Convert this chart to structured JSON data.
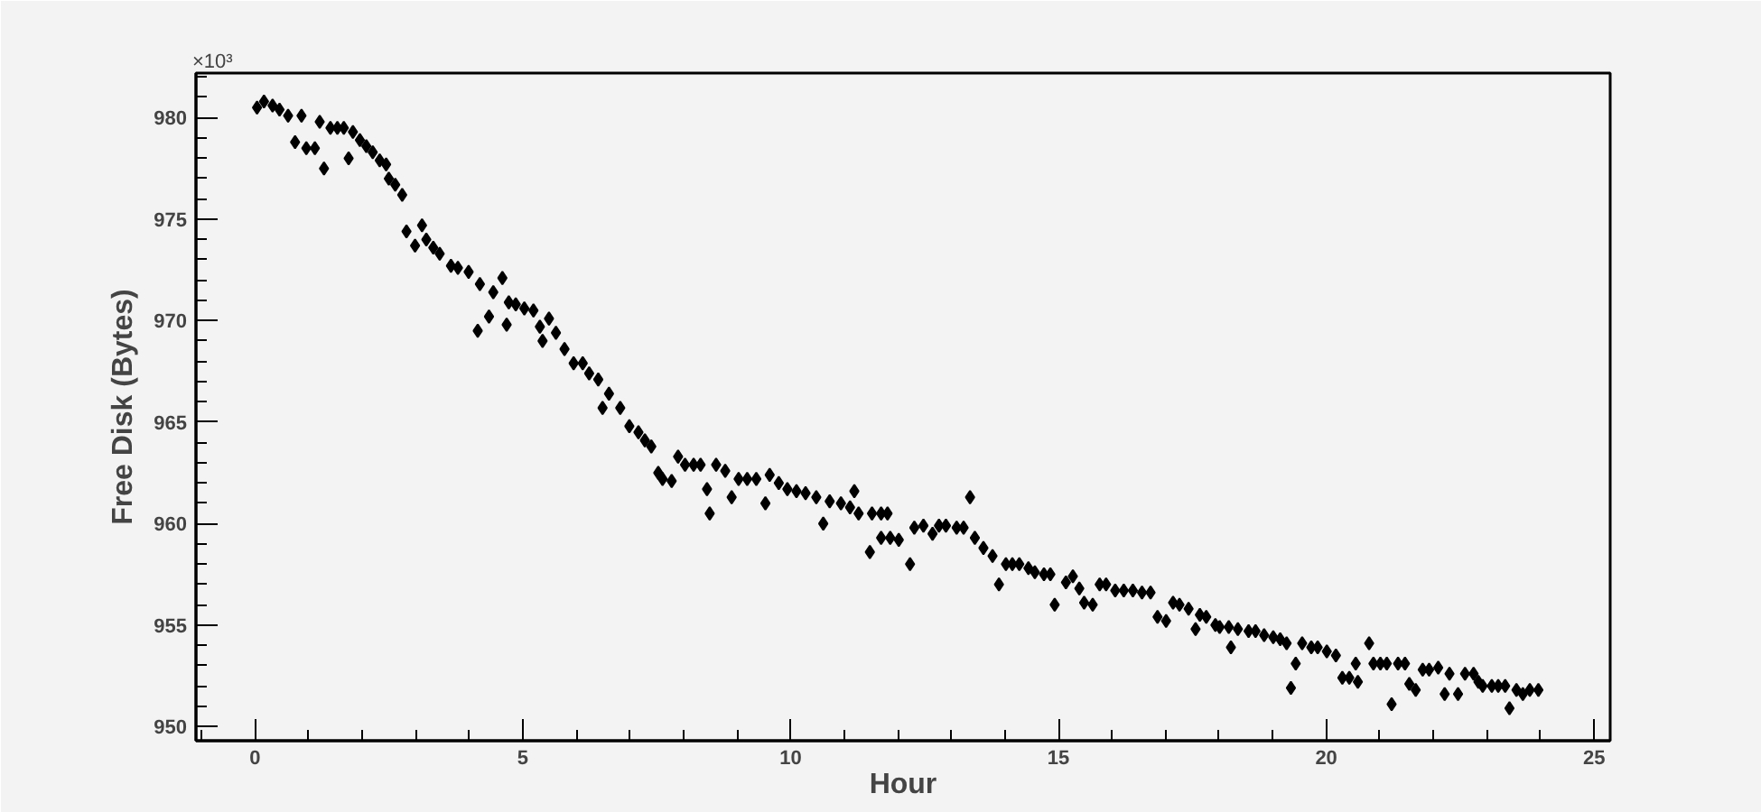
{
  "chart_data": {
    "type": "scatter",
    "xlabel": "Hour",
    "ylabel": "Free Disk (Bytes)",
    "annotations": [
      "×10³"
    ],
    "marker": "diamond",
    "grid": false,
    "xlim": [
      -1.1,
      25.3
    ],
    "ylim": [
      949.3,
      982.2
    ],
    "xticks": [
      {
        "value": -1,
        "label": null
      },
      0,
      {
        "value": 1,
        "label": null
      },
      {
        "value": 2,
        "label": null
      },
      {
        "value": 3,
        "label": null
      },
      {
        "value": 4,
        "label": null
      },
      5,
      {
        "value": 6,
        "label": null
      },
      {
        "value": 7,
        "label": null
      },
      {
        "value": 8,
        "label": null
      },
      {
        "value": 9,
        "label": null
      },
      10,
      {
        "value": 11,
        "label": null
      },
      {
        "value": 12,
        "label": null
      },
      {
        "value": 13,
        "label": null
      },
      {
        "value": 14,
        "label": null
      },
      15,
      {
        "value": 16,
        "label": null
      },
      {
        "value": 17,
        "label": null
      },
      {
        "value": 18,
        "label": null
      },
      {
        "value": 19,
        "label": null
      },
      20,
      {
        "value": 21,
        "label": null
      },
      {
        "value": 22,
        "label": null
      },
      {
        "value": 23,
        "label": null
      },
      {
        "value": 24,
        "label": null
      },
      25
    ],
    "yticks": [
      950,
      {
        "value": 951,
        "label": null
      },
      {
        "value": 952,
        "label": null
      },
      {
        "value": 953,
        "label": null
      },
      {
        "value": 954,
        "label": null
      },
      955,
      {
        "value": 956,
        "label": null
      },
      {
        "value": 957,
        "label": null
      },
      {
        "value": 958,
        "label": null
      },
      {
        "value": 959,
        "label": null
      },
      960,
      {
        "value": 961,
        "label": null
      },
      {
        "value": 962,
        "label": null
      },
      {
        "value": 963,
        "label": null
      },
      {
        "value": 964,
        "label": null
      },
      965,
      {
        "value": 966,
        "label": null
      },
      {
        "value": 967,
        "label": null
      },
      {
        "value": 968,
        "label": null
      },
      {
        "value": 969,
        "label": null
      },
      970,
      {
        "value": 971,
        "label": null
      },
      {
        "value": 972,
        "label": null
      },
      {
        "value": 973,
        "label": null
      },
      {
        "value": 974,
        "label": null
      },
      975,
      {
        "value": 976,
        "label": null
      },
      {
        "value": 977,
        "label": null
      },
      {
        "value": 978,
        "label": null
      },
      {
        "value": 979,
        "label": null
      },
      980,
      {
        "value": 981,
        "label": null
      },
      {
        "value": 982,
        "label": null
      }
    ],
    "series": [
      {
        "color": "#000000",
        "x": [
          0.04,
          0.17,
          0.33,
          0.46,
          0.62,
          0.87,
          0.75,
          0.96,
          1.12,
          1.29,
          1.21,
          1.41,
          1.54,
          1.66,
          1.75,
          1.83,
          1.96,
          2.08,
          2.2,
          2.33,
          2.45,
          2.5,
          2.62,
          2.75,
          2.83,
          2.99,
          3.12,
          3.2,
          3.33,
          3.45,
          3.66,
          3.79,
          3.99,
          4.16,
          4.2,
          4.37,
          4.45,
          4.62,
          4.7,
          4.74,
          4.87,
          5.03,
          5.2,
          5.32,
          5.37,
          5.49,
          5.62,
          5.78,
          5.95,
          6.12,
          6.24,
          6.41,
          6.49,
          6.61,
          6.82,
          6.99,
          7.16,
          7.28,
          7.4,
          7.53,
          7.61,
          7.78,
          7.9,
          8.03,
          8.19,
          8.32,
          8.44,
          8.49,
          8.61,
          8.78,
          8.9,
          9.03,
          9.19,
          9.36,
          9.53,
          9.61,
          9.78,
          9.94,
          10.11,
          10.28,
          10.48,
          10.61,
          10.73,
          10.94,
          11.11,
          11.19,
          11.27,
          11.52,
          11.69,
          11.81,
          11.48,
          11.69,
          11.86,
          12.02,
          12.23,
          12.31,
          12.48,
          12.65,
          12.77,
          12.9,
          13.1,
          13.23,
          13.35,
          13.44,
          13.6,
          13.77,
          13.89,
          14.02,
          14.14,
          14.27,
          14.44,
          14.56,
          14.73,
          14.85,
          14.93,
          15.14,
          15.27,
          15.39,
          15.48,
          15.64,
          15.77,
          15.89,
          16.06,
          16.22,
          16.39,
          16.56,
          16.72,
          16.85,
          17.01,
          17.14,
          17.26,
          17.43,
          17.56,
          17.64,
          17.76,
          17.93,
          18.01,
          18.18,
          18.22,
          18.35,
          18.55,
          18.68,
          18.84,
          19.01,
          19.14,
          19.26,
          19.34,
          19.43,
          19.55,
          19.72,
          19.84,
          20.01,
          20.18,
          20.3,
          20.43,
          20.59,
          20.55,
          20.8,
          20.88,
          21.01,
          21.13,
          21.22,
          21.34,
          21.47,
          21.55,
          21.67,
          21.8,
          21.92,
          22.09,
          22.21,
          22.3,
          22.46,
          22.59,
          22.75,
          22.84,
          22.92,
          23.09,
          23.21,
          23.34,
          23.42,
          23.55,
          23.67,
          23.8,
          23.96
        ],
        "values": [
          980.5,
          980.8,
          980.6,
          980.4,
          980.1,
          980.1,
          978.8,
          978.5,
          978.5,
          977.5,
          979.8,
          979.5,
          979.5,
          979.5,
          978.0,
          979.3,
          978.9,
          978.6,
          978.3,
          977.9,
          977.7,
          977.0,
          976.7,
          976.2,
          974.4,
          973.7,
          974.7,
          974.0,
          973.6,
          973.3,
          972.7,
          972.6,
          972.4,
          969.5,
          971.8,
          970.2,
          971.4,
          972.1,
          969.8,
          970.9,
          970.8,
          970.6,
          970.5,
          969.7,
          969.0,
          970.1,
          969.4,
          968.6,
          967.9,
          967.9,
          967.4,
          967.1,
          965.7,
          966.4,
          965.7,
          964.8,
          964.5,
          964.1,
          963.8,
          962.5,
          962.2,
          962.1,
          963.3,
          962.9,
          962.9,
          962.9,
          961.7,
          960.5,
          962.9,
          962.6,
          961.3,
          962.2,
          962.2,
          962.2,
          961.0,
          962.4,
          962.0,
          961.7,
          961.6,
          961.5,
          961.3,
          960.0,
          961.1,
          961.0,
          960.8,
          961.6,
          960.5,
          960.5,
          960.5,
          960.5,
          958.6,
          959.3,
          959.3,
          959.2,
          958.0,
          959.8,
          959.9,
          959.5,
          959.9,
          959.9,
          959.8,
          959.8,
          961.3,
          959.3,
          958.8,
          958.4,
          957.0,
          958.0,
          958.0,
          958.0,
          957.8,
          957.6,
          957.5,
          957.5,
          956.0,
          957.1,
          957.4,
          956.8,
          956.1,
          956.0,
          957.0,
          957.0,
          956.7,
          956.7,
          956.7,
          956.6,
          956.6,
          955.4,
          955.2,
          956.1,
          956.0,
          955.8,
          954.8,
          955.5,
          955.4,
          955.0,
          954.9,
          954.9,
          953.9,
          954.8,
          954.7,
          954.7,
          954.5,
          954.4,
          954.3,
          954.1,
          951.9,
          953.1,
          954.1,
          953.9,
          953.9,
          953.7,
          953.5,
          952.4,
          952.4,
          952.2,
          953.1,
          954.1,
          953.1,
          953.1,
          953.1,
          951.1,
          953.1,
          953.1,
          952.1,
          951.8,
          952.8,
          952.8,
          952.9,
          951.6,
          952.6,
          951.6,
          952.6,
          952.6,
          952.2,
          952.0,
          952.0,
          952.0,
          952.0,
          950.9,
          951.8,
          951.6,
          951.8,
          951.8
        ]
      }
    ]
  }
}
